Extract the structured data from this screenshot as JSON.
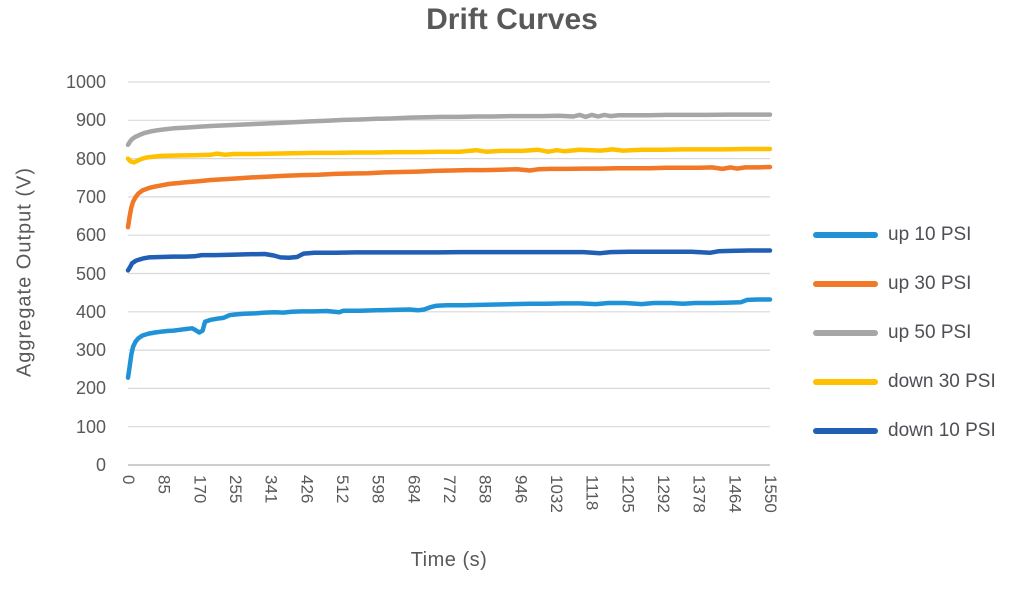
{
  "title": "Drift Curves",
  "axes": {
    "y_title": "Aggregate Output (V)",
    "x_title": "Time (s)"
  },
  "colors": {
    "background": "#FFFFFF",
    "text": "#595959",
    "gridline": "#D9D9D9",
    "axis_line": "#BFBFBF"
  },
  "chart_data": {
    "type": "line",
    "title": "Drift Curves",
    "xlabel": "Time (s)",
    "ylabel": "Aggregate Output (V)",
    "xlim": [
      0,
      1550
    ],
    "ylim": [
      0,
      1000
    ],
    "grid": true,
    "legend_position": "right",
    "y_ticks": [
      0,
      100,
      200,
      300,
      400,
      500,
      600,
      700,
      800,
      900,
      1000
    ],
    "x_tick_labels": [
      "0",
      "85",
      "170",
      "255",
      "341",
      "426",
      "512",
      "598",
      "684",
      "772",
      "858",
      "946",
      "1032",
      "1118",
      "1205",
      "1292",
      "1378",
      "1464",
      "1550"
    ],
    "series": [
      {
        "name": "up 10 PSI",
        "color": "#1F93D6",
        "points": [
          [
            0,
            228
          ],
          [
            4,
            258
          ],
          [
            8,
            288
          ],
          [
            12,
            308
          ],
          [
            18,
            322
          ],
          [
            25,
            331
          ],
          [
            35,
            338
          ],
          [
            50,
            343
          ],
          [
            65,
            346
          ],
          [
            80,
            348
          ],
          [
            95,
            350
          ],
          [
            110,
            351
          ],
          [
            125,
            353
          ],
          [
            140,
            355
          ],
          [
            155,
            357
          ],
          [
            165,
            351
          ],
          [
            172,
            346
          ],
          [
            180,
            351
          ],
          [
            186,
            374
          ],
          [
            200,
            379
          ],
          [
            215,
            382
          ],
          [
            230,
            384
          ],
          [
            245,
            391
          ],
          [
            258,
            393
          ],
          [
            280,
            395
          ],
          [
            310,
            396
          ],
          [
            330,
            398
          ],
          [
            355,
            399
          ],
          [
            375,
            398
          ],
          [
            395,
            400
          ],
          [
            420,
            401
          ],
          [
            450,
            401
          ],
          [
            480,
            402
          ],
          [
            510,
            399
          ],
          [
            520,
            403
          ],
          [
            560,
            403
          ],
          [
            600,
            404
          ],
          [
            640,
            405
          ],
          [
            680,
            406
          ],
          [
            700,
            404
          ],
          [
            715,
            406
          ],
          [
            730,
            412
          ],
          [
            745,
            416
          ],
          [
            770,
            417
          ],
          [
            810,
            417
          ],
          [
            850,
            418
          ],
          [
            890,
            419
          ],
          [
            930,
            420
          ],
          [
            970,
            421
          ],
          [
            1010,
            421
          ],
          [
            1050,
            422
          ],
          [
            1090,
            422
          ],
          [
            1130,
            420
          ],
          [
            1160,
            423
          ],
          [
            1200,
            423
          ],
          [
            1240,
            420
          ],
          [
            1270,
            423
          ],
          [
            1310,
            423
          ],
          [
            1340,
            421
          ],
          [
            1370,
            423
          ],
          [
            1410,
            423
          ],
          [
            1450,
            424
          ],
          [
            1480,
            425
          ],
          [
            1495,
            431
          ],
          [
            1520,
            432
          ],
          [
            1550,
            432
          ]
        ]
      },
      {
        "name": "up 30 PSI",
        "color": "#F07826",
        "points": [
          [
            0,
            621
          ],
          [
            4,
            650
          ],
          [
            8,
            672
          ],
          [
            12,
            687
          ],
          [
            18,
            699
          ],
          [
            25,
            709
          ],
          [
            35,
            717
          ],
          [
            50,
            723
          ],
          [
            65,
            727
          ],
          [
            80,
            730
          ],
          [
            100,
            734
          ],
          [
            120,
            736
          ],
          [
            140,
            738
          ],
          [
            170,
            741
          ],
          [
            200,
            744
          ],
          [
            230,
            746
          ],
          [
            260,
            748
          ],
          [
            300,
            751
          ],
          [
            340,
            753
          ],
          [
            380,
            755
          ],
          [
            420,
            757
          ],
          [
            460,
            758
          ],
          [
            500,
            760
          ],
          [
            540,
            761
          ],
          [
            580,
            762
          ],
          [
            620,
            764
          ],
          [
            660,
            765
          ],
          [
            700,
            766
          ],
          [
            740,
            768
          ],
          [
            780,
            769
          ],
          [
            820,
            770
          ],
          [
            860,
            770
          ],
          [
            900,
            771
          ],
          [
            940,
            772
          ],
          [
            970,
            769
          ],
          [
            990,
            772
          ],
          [
            1020,
            773
          ],
          [
            1060,
            773
          ],
          [
            1100,
            774
          ],
          [
            1140,
            774
          ],
          [
            1180,
            775
          ],
          [
            1220,
            775
          ],
          [
            1260,
            775
          ],
          [
            1300,
            776
          ],
          [
            1340,
            776
          ],
          [
            1380,
            776
          ],
          [
            1410,
            777
          ],
          [
            1435,
            773
          ],
          [
            1455,
            777
          ],
          [
            1470,
            774
          ],
          [
            1490,
            777
          ],
          [
            1520,
            777
          ],
          [
            1550,
            778
          ]
        ]
      },
      {
        "name": "up 50 PSI",
        "color": "#A6A6A6",
        "points": [
          [
            0,
            836
          ],
          [
            5,
            845
          ],
          [
            10,
            851
          ],
          [
            18,
            857
          ],
          [
            28,
            862
          ],
          [
            40,
            867
          ],
          [
            55,
            871
          ],
          [
            70,
            874
          ],
          [
            85,
            876
          ],
          [
            110,
            879
          ],
          [
            140,
            881
          ],
          [
            170,
            883
          ],
          [
            200,
            885
          ],
          [
            240,
            887
          ],
          [
            280,
            889
          ],
          [
            320,
            891
          ],
          [
            360,
            893
          ],
          [
            400,
            895
          ],
          [
            440,
            897
          ],
          [
            480,
            899
          ],
          [
            520,
            901
          ],
          [
            560,
            902
          ],
          [
            600,
            904
          ],
          [
            640,
            905
          ],
          [
            680,
            907
          ],
          [
            720,
            908
          ],
          [
            760,
            909
          ],
          [
            800,
            909
          ],
          [
            840,
            910
          ],
          [
            880,
            910
          ],
          [
            920,
            911
          ],
          [
            960,
            911
          ],
          [
            1000,
            911
          ],
          [
            1040,
            912
          ],
          [
            1075,
            910
          ],
          [
            1090,
            914
          ],
          [
            1105,
            909
          ],
          [
            1120,
            914
          ],
          [
            1135,
            910
          ],
          [
            1150,
            914
          ],
          [
            1165,
            911
          ],
          [
            1185,
            913
          ],
          [
            1220,
            913
          ],
          [
            1260,
            913
          ],
          [
            1300,
            914
          ],
          [
            1350,
            914
          ],
          [
            1400,
            914
          ],
          [
            1450,
            915
          ],
          [
            1500,
            915
          ],
          [
            1550,
            915
          ]
        ]
      },
      {
        "name": "down 30 PSI",
        "color": "#FFC000",
        "points": [
          [
            0,
            800
          ],
          [
            6,
            793
          ],
          [
            14,
            790
          ],
          [
            22,
            794
          ],
          [
            32,
            799
          ],
          [
            45,
            803
          ],
          [
            60,
            805
          ],
          [
            80,
            807
          ],
          [
            120,
            808
          ],
          [
            160,
            809
          ],
          [
            200,
            810
          ],
          [
            215,
            813
          ],
          [
            235,
            810
          ],
          [
            255,
            812
          ],
          [
            300,
            812
          ],
          [
            350,
            813
          ],
          [
            400,
            814
          ],
          [
            450,
            815
          ],
          [
            500,
            815
          ],
          [
            550,
            816
          ],
          [
            600,
            816
          ],
          [
            650,
            817
          ],
          [
            700,
            817
          ],
          [
            750,
            818
          ],
          [
            800,
            818
          ],
          [
            840,
            822
          ],
          [
            865,
            818
          ],
          [
            900,
            820
          ],
          [
            950,
            820
          ],
          [
            990,
            823
          ],
          [
            1015,
            818
          ],
          [
            1035,
            822
          ],
          [
            1055,
            819
          ],
          [
            1090,
            823
          ],
          [
            1140,
            821
          ],
          [
            1170,
            824
          ],
          [
            1195,
            821
          ],
          [
            1240,
            823
          ],
          [
            1290,
            823
          ],
          [
            1340,
            824
          ],
          [
            1390,
            824
          ],
          [
            1440,
            824
          ],
          [
            1490,
            825
          ],
          [
            1550,
            825
          ]
        ]
      },
      {
        "name": "down 10 PSI",
        "color": "#215FB4",
        "points": [
          [
            0,
            508
          ],
          [
            5,
            517
          ],
          [
            10,
            527
          ],
          [
            20,
            534
          ],
          [
            35,
            539
          ],
          [
            50,
            542
          ],
          [
            80,
            543
          ],
          [
            110,
            544
          ],
          [
            140,
            544
          ],
          [
            160,
            545
          ],
          [
            178,
            548
          ],
          [
            210,
            548
          ],
          [
            250,
            549
          ],
          [
            290,
            550
          ],
          [
            330,
            551
          ],
          [
            352,
            547
          ],
          [
            368,
            542
          ],
          [
            388,
            541
          ],
          [
            408,
            543
          ],
          [
            424,
            552
          ],
          [
            450,
            554
          ],
          [
            500,
            554
          ],
          [
            550,
            555
          ],
          [
            600,
            555
          ],
          [
            650,
            555
          ],
          [
            700,
            555
          ],
          [
            750,
            555
          ],
          [
            800,
            556
          ],
          [
            850,
            556
          ],
          [
            900,
            556
          ],
          [
            950,
            556
          ],
          [
            1000,
            556
          ],
          [
            1050,
            556
          ],
          [
            1100,
            556
          ],
          [
            1140,
            553
          ],
          [
            1165,
            556
          ],
          [
            1210,
            557
          ],
          [
            1260,
            557
          ],
          [
            1310,
            557
          ],
          [
            1360,
            557
          ],
          [
            1405,
            554
          ],
          [
            1425,
            558
          ],
          [
            1455,
            559
          ],
          [
            1500,
            560
          ],
          [
            1550,
            560
          ]
        ]
      }
    ]
  }
}
